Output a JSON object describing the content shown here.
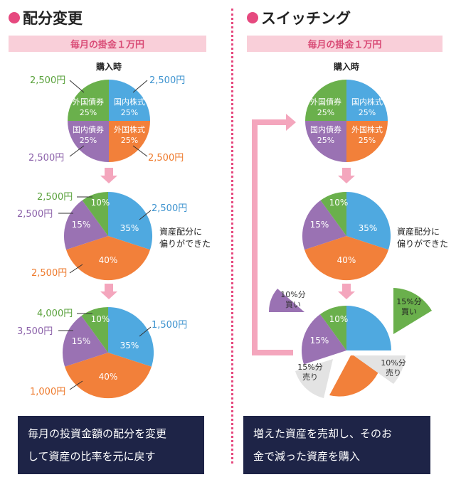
{
  "left": {
    "heading": "配分変更",
    "band": "毎月の掛金１万円",
    "purchase_label": "購入時",
    "pie1": {
      "slices": [
        {
          "name": "国内株式",
          "pct": "25%"
        },
        {
          "name": "外国株式",
          "pct": "25%"
        },
        {
          "name": "国内債券",
          "pct": "25%"
        },
        {
          "name": "外国債券",
          "pct": "25%"
        }
      ],
      "amounts": {
        "green": "2,500円",
        "blue": "2,500円",
        "purple": "2,500円",
        "orange": "2,500円"
      }
    },
    "pie2": {
      "blue": "35%",
      "orange": "40%",
      "purple": "15%",
      "green": "10%",
      "amounts": {
        "green": "2,500円",
        "purple": "2,500円",
        "blue": "2,500円",
        "orange": "2,500円"
      },
      "note_line1": "資産配分に",
      "note_line2": "偏りができた"
    },
    "pie3": {
      "blue": "35%",
      "orange": "40%",
      "purple": "15%",
      "green": "10%",
      "amounts": {
        "green": "4,000円",
        "purple": "3,500円",
        "blue": "1,500円",
        "orange": "1,000円"
      }
    },
    "caption_line1": "毎月の投資金額の配分を変更",
    "caption_line2": "して資産の比率を元に戻す"
  },
  "right": {
    "heading": "スイッチング",
    "band": "毎月の掛金１万円",
    "purchase_label": "購入時",
    "pie1": {
      "slices": [
        {
          "name": "国内株式",
          "pct": "25%"
        },
        {
          "name": "外国株式",
          "pct": "25%"
        },
        {
          "name": "国内債券",
          "pct": "25%"
        },
        {
          "name": "外国債券",
          "pct": "25%"
        }
      ]
    },
    "pie2": {
      "blue": "35%",
      "orange": "40%",
      "purple": "15%",
      "green": "10%",
      "note_line1": "資産配分に",
      "note_line2": "偏りができた"
    },
    "pie3": {
      "purple": "15%",
      "green": "10%",
      "buy_purple_line1": "10%分",
      "buy_purple_line2": "買い",
      "buy_green_line1": "15%分",
      "buy_green_line2": "買い",
      "sell_orange_line1": "15%分",
      "sell_orange_line2": "売り",
      "sell_blue_line1": "10%分",
      "sell_blue_line2": "売り"
    },
    "caption_line1": "増えた資産を売却し、そのお",
    "caption_line2": "金で減った資産を購入"
  },
  "colors": {
    "blue": "#4fa9e0",
    "orange": "#f2803a",
    "purple": "#9a72b3",
    "green": "#6ab04c",
    "pink": "#e6497f",
    "band_bg": "#f9cfd9",
    "arrow": "#f4a6bd",
    "gray": "#e3e3e3",
    "caption_bg": "#1e2447",
    "label_blue": "#3d93cf",
    "label_orange": "#ee7a2c",
    "label_purple": "#8c62aa",
    "label_green": "#5aa23c"
  }
}
